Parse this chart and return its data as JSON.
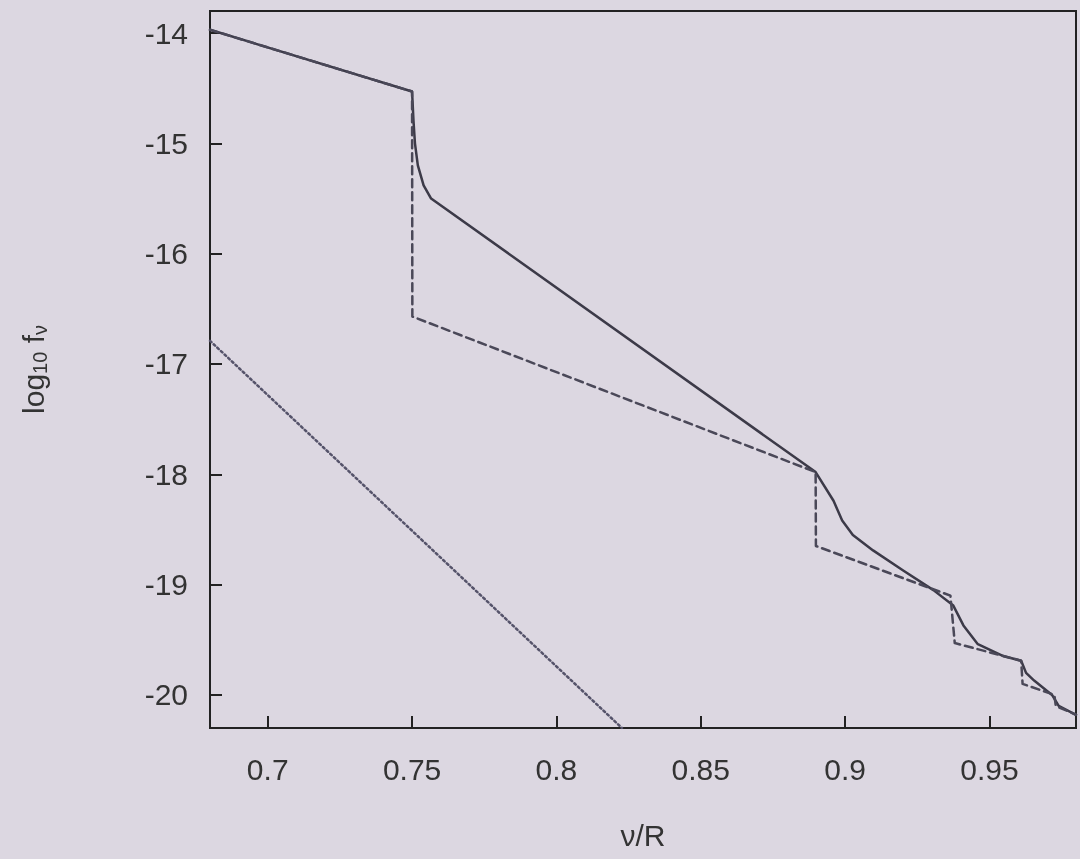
{
  "chart_data": {
    "type": "line",
    "xlabel": "ν/R",
    "ylabel": "log$_{10}$ f$_{ν}$",
    "xlim": [
      0.68,
      0.98
    ],
    "ylim": [
      -20.3,
      -13.8
    ],
    "xticks": [
      0.7,
      0.75,
      0.8,
      0.85,
      0.9,
      0.95
    ],
    "yticks": [
      -20,
      -19,
      -18,
      -17,
      -16,
      -15,
      -14
    ],
    "grid": false,
    "marker": "none",
    "series": [
      {
        "color": "#3c3a48",
        "line_style": "solid",
        "x": [
          0.68,
          0.75,
          0.7505,
          0.751,
          0.752,
          0.754,
          0.7566,
          0.8898,
          0.896,
          0.899,
          0.9027,
          0.9097,
          0.92,
          0.9306,
          0.9375,
          0.941,
          0.946,
          0.955,
          0.961,
          0.9627,
          0.9655,
          0.9717,
          0.974,
          0.98
        ],
        "values": [
          -13.97,
          -14.53,
          -14.8,
          -15.0,
          -15.2,
          -15.38,
          -15.5,
          -17.98,
          -18.24,
          -18.42,
          -18.55,
          -18.69,
          -18.87,
          -19.05,
          -19.19,
          -19.37,
          -19.54,
          -19.65,
          -19.69,
          -19.8,
          -19.87,
          -20.0,
          -20.1,
          -20.18
        ]
      },
      {
        "color": "#4a4858",
        "line_style": "dashed",
        "x": [
          0.68,
          0.75,
          0.7501,
          0.8898,
          0.8899,
          0.9365,
          0.938,
          0.961,
          0.9615,
          0.9725,
          0.973,
          0.98
        ],
        "values": [
          -13.97,
          -14.53,
          -16.57,
          -17.98,
          -18.65,
          -19.1,
          -19.53,
          -19.69,
          -19.9,
          -20.0,
          -20.1,
          -20.18
        ]
      },
      {
        "color": "#55536a",
        "line_style": "dotted",
        "x": [
          0.68,
          0.8227
        ],
        "values": [
          -16.79,
          -20.3
        ]
      }
    ]
  }
}
